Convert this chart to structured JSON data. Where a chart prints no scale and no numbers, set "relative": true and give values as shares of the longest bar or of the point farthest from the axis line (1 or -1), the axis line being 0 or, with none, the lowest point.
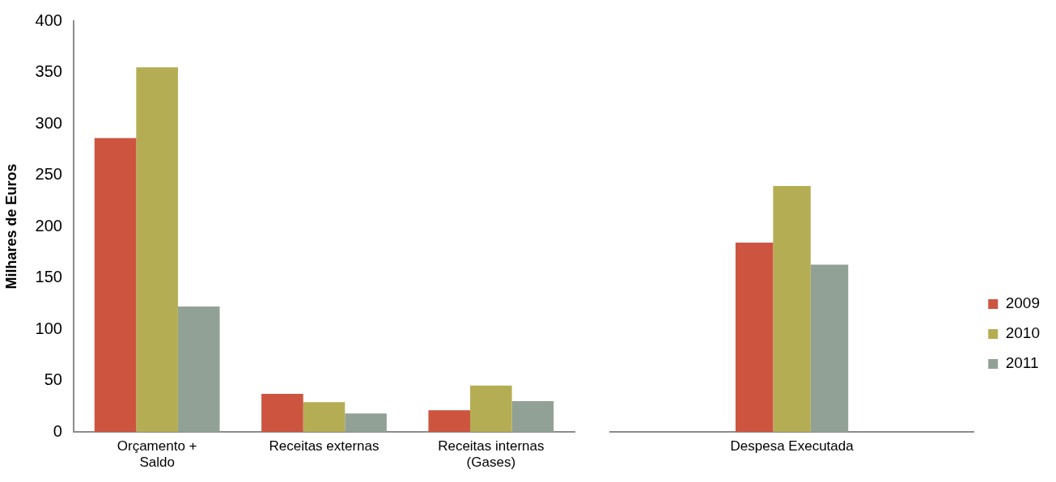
{
  "chart_data": [
    {
      "type": "bar",
      "ylabel": "Milhares de Euros",
      "categories": [
        "Orçamento + Saldo",
        "Receitas externas",
        "Receitas internas (Gases)"
      ],
      "series": [
        {
          "color": "#cd5540",
          "values": [
            286,
            37,
            21
          ]
        },
        {
          "color": "#b5ad53",
          "values": [
            355,
            29,
            45
          ]
        },
        {
          "color": "#92a196",
          "values": [
            122,
            18,
            30
          ]
        }
      ],
      "ylim": [
        0,
        400
      ],
      "yticks": [
        0,
        50,
        100,
        150,
        200,
        250,
        300,
        350,
        400
      ],
      "grid": false,
      "legend": false
    },
    {
      "type": "bar",
      "categories": [
        "Despesa Executada"
      ],
      "relative": true,
      "series": [
        {
          "name": "2009",
          "color": "#cd5540",
          "values": [
            0.77
          ]
        },
        {
          "name": "2010",
          "color": "#b5ad53",
          "values": [
            1
          ]
        },
        {
          "name": "2011",
          "color": "#92a196",
          "values": [
            0.68
          ]
        }
      ],
      "grid": false,
      "legend": "right"
    }
  ]
}
